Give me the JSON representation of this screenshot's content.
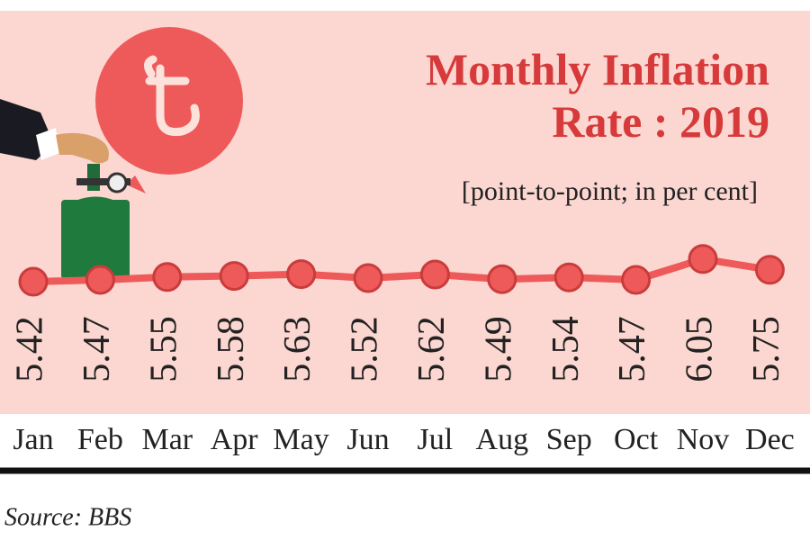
{
  "chart_data": {
    "type": "line",
    "title": "Monthly Inflation Rate : 2019",
    "subtitle": "[point-to-point; in per cent]",
    "source": "Source: BBS",
    "categories": [
      "Jan",
      "Feb",
      "Mar",
      "Apr",
      "May",
      "Jun",
      "Jul",
      "Aug",
      "Sep",
      "Oct",
      "Nov",
      "Dec"
    ],
    "values": [
      5.42,
      5.47,
      5.55,
      5.58,
      5.63,
      5.52,
      5.62,
      5.49,
      5.54,
      5.47,
      6.05,
      5.75
    ],
    "color": "#ee5a5a",
    "marker_stroke": "#c93c3c"
  }
}
